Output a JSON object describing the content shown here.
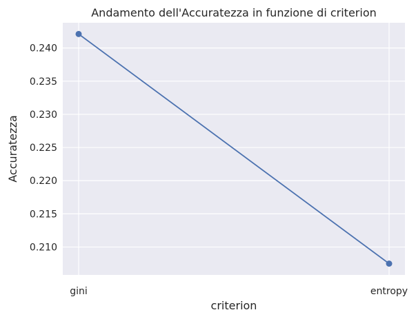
{
  "chart_data": {
    "type": "line",
    "title": "Andamento dell'Accuratezza in funzione di criterion",
    "xlabel": "criterion",
    "ylabel": "Accuratezza",
    "categories": [
      "gini",
      "entropy"
    ],
    "series": [
      {
        "values": [
          0.2421,
          0.2075
        ]
      }
    ],
    "ylim": [
      0.2058,
      0.2438
    ],
    "yticks": [
      0.21,
      0.215,
      0.22,
      0.225,
      0.23,
      0.235,
      0.24
    ],
    "ytick_labels": [
      "0.210",
      "0.215",
      "0.220",
      "0.225",
      "0.230",
      "0.235",
      "0.240"
    ],
    "grid": true,
    "colors": {
      "background": "#eaeaf2",
      "grid": "#ffffff",
      "line": "#4c72b0"
    }
  }
}
